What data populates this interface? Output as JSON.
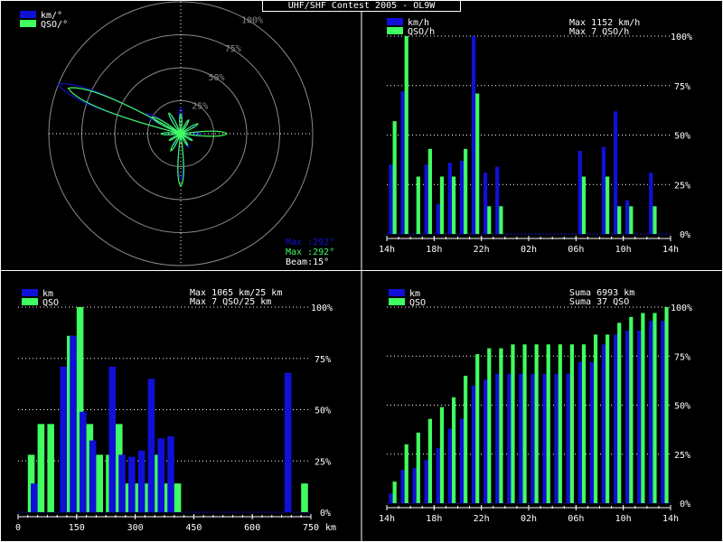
{
  "title": "UHF/SHF Contest 2005 - OL9W",
  "colors": {
    "blue": "#1010d8",
    "green": "#40ff60",
    "grid": "#ffffff",
    "ring": "#8a8a8a",
    "ringLabel": "#8a8a8a"
  },
  "chart_data": [
    {
      "type": "polar",
      "legend": [
        "km/°",
        "QSO/°"
      ],
      "ring_labels": [
        "25%",
        "50%",
        "75%",
        "100%"
      ],
      "info": [
        "Max :292°",
        "Max :292°",
        "Beam:15°"
      ],
      "beam_deg": 15,
      "series": [
        {
          "name": "km/°",
          "angles": [
            0,
            30,
            60,
            90,
            120,
            150,
            180,
            210,
            240,
            270,
            292,
            300,
            330
          ],
          "values": [
            0.2,
            0.1,
            0.12,
            0.15,
            0.1,
            0.12,
            0.35,
            0.1,
            0.08,
            0.12,
            1.0,
            0.3,
            0.15
          ]
        },
        {
          "name": "QSO/°",
          "angles": [
            0,
            30,
            60,
            90,
            120,
            150,
            180,
            210,
            240,
            270,
            292,
            300,
            330
          ],
          "values": [
            0.15,
            0.12,
            0.15,
            0.35,
            0.1,
            0.1,
            0.4,
            0.15,
            0.1,
            0.15,
            0.92,
            0.25,
            0.18
          ]
        }
      ]
    },
    {
      "type": "bar",
      "legend": [
        "km/h",
        "QSO/h"
      ],
      "max_lines": [
        "Max  1152 km/h",
        "Max     7 QSO/h"
      ],
      "categories": [
        "14h",
        "15h",
        "16h",
        "17h",
        "18h",
        "19h",
        "20h",
        "21h",
        "22h",
        "23h",
        "00h",
        "01h",
        "02h",
        "03h",
        "04h",
        "05h",
        "06h",
        "07h",
        "08h",
        "09h",
        "10h",
        "11h",
        "12h",
        "13h"
      ],
      "tick_labels": [
        "14h",
        "18h",
        "22h",
        "02h",
        "06h",
        "10h",
        "14h"
      ],
      "y_tick_labels": [
        "0%",
        "25%",
        "50%",
        "75%",
        "100%"
      ],
      "series": [
        {
          "name": "km/h",
          "values": [
            35,
            72,
            0,
            35,
            15,
            36,
            37,
            100,
            31,
            34,
            0,
            0,
            0,
            0,
            0,
            0,
            42,
            0,
            44,
            62,
            17,
            0,
            31,
            0
          ]
        },
        {
          "name": "QSO/h",
          "values": [
            57,
            100,
            29,
            43,
            29,
            29,
            43,
            71,
            14,
            14,
            0,
            0,
            0,
            0,
            0,
            0,
            29,
            0,
            29,
            14,
            14,
            0,
            14,
            0
          ]
        }
      ]
    },
    {
      "type": "bar",
      "legend": [
        "km",
        "QSO"
      ],
      "max_lines": [
        "Max  1065 km/25 km",
        "Max     7 QSO/25 km"
      ],
      "xlabel": "km",
      "tick_labels": [
        "0",
        "150",
        "300",
        "450",
        "600",
        "750"
      ],
      "y_tick_labels": [
        "0%",
        "25%",
        "50%",
        "75%",
        "100%"
      ],
      "x": [
        25,
        50,
        75,
        125,
        150,
        175,
        200,
        225,
        250,
        275,
        300,
        325,
        350,
        375,
        400,
        700,
        725
      ],
      "series": [
        {
          "name": "km",
          "values": [
            0,
            14,
            0,
            71,
            86,
            49,
            35,
            0,
            71,
            28,
            27,
            30,
            65,
            36,
            37,
            68,
            0
          ]
        },
        {
          "name": "QSO",
          "values": [
            28,
            43,
            43,
            86,
            100,
            43,
            28,
            28,
            43,
            14,
            14,
            14,
            28,
            14,
            14,
            0,
            14
          ]
        }
      ]
    },
    {
      "type": "bar",
      "legend": [
        "km",
        "QSO"
      ],
      "max_lines": [
        "Suma   6993 km",
        "Suma     37 QSO"
      ],
      "categories": [
        "14h",
        "15h",
        "16h",
        "17h",
        "18h",
        "19h",
        "20h",
        "21h",
        "22h",
        "23h",
        "00h",
        "01h",
        "02h",
        "03h",
        "04h",
        "05h",
        "06h",
        "07h",
        "08h",
        "09h",
        "10h",
        "11h",
        "12h",
        "13h"
      ],
      "tick_labels": [
        "14h",
        "18h",
        "22h",
        "02h",
        "06h",
        "10h",
        "14h"
      ],
      "y_tick_labels": [
        "0%",
        "25%",
        "50%",
        "75%",
        "100%"
      ],
      "series": [
        {
          "name": "km",
          "values": [
            5,
            17,
            18,
            22,
            28,
            38,
            43,
            60,
            63,
            66,
            66,
            66,
            66,
            66,
            66,
            66,
            72,
            72,
            81,
            86,
            88,
            88,
            93,
            93
          ]
        },
        {
          "name": "QSO",
          "values": [
            11,
            30,
            36,
            43,
            49,
            54,
            65,
            76,
            79,
            79,
            81,
            81,
            81,
            81,
            81,
            81,
            81,
            86,
            86,
            92,
            95,
            97,
            97,
            100
          ]
        }
      ]
    }
  ]
}
